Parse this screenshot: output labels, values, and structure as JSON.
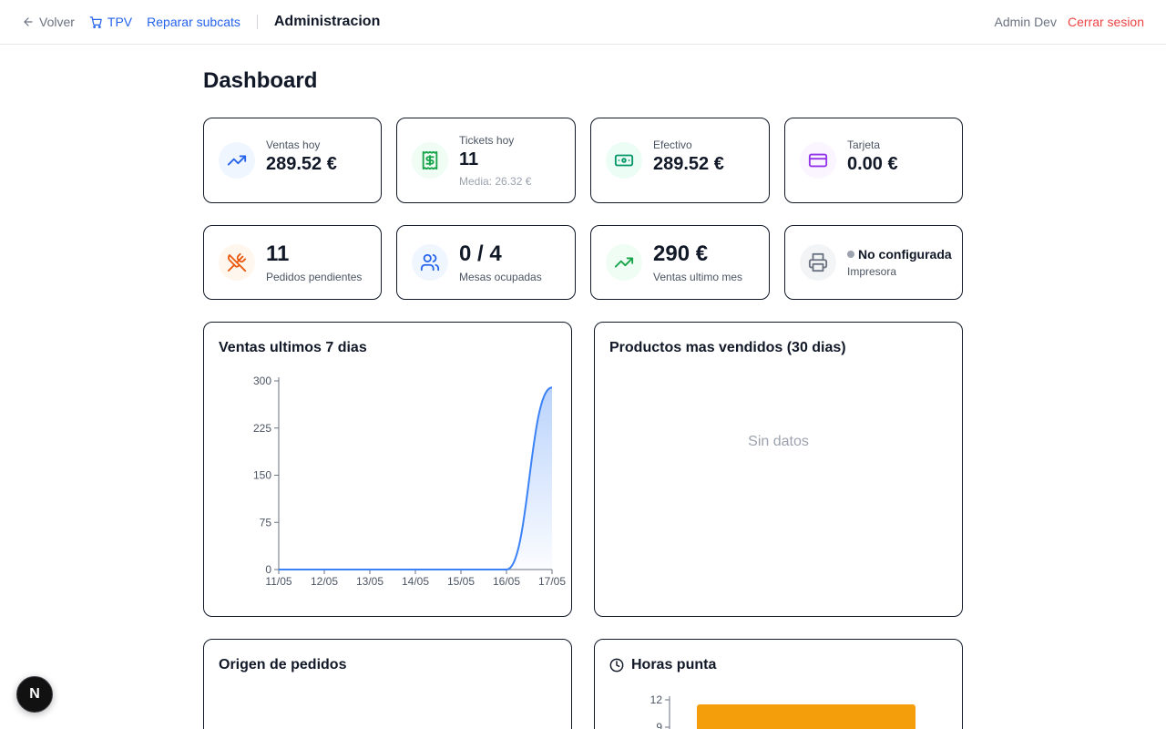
{
  "nav": {
    "back_label": "Volver",
    "tpv_label": "TPV",
    "repair_label": "Reparar subcats",
    "section_title": "Administracion",
    "user_name": "Admin Dev",
    "logout_label": "Cerrar sesion"
  },
  "page": {
    "title": "Dashboard"
  },
  "stats": {
    "ventas_hoy": {
      "label": "Ventas hoy",
      "value": "289.52 €"
    },
    "tickets_hoy": {
      "label": "Tickets hoy",
      "value": "11",
      "sub": "Media: 26.32 €"
    },
    "efectivo": {
      "label": "Efectivo",
      "value": "289.52 €"
    },
    "tarjeta": {
      "label": "Tarjeta",
      "value": "0.00 €"
    },
    "pedidos": {
      "value": "11",
      "label": "Pedidos pendientes"
    },
    "mesas": {
      "value": "0 / 4",
      "label": "Mesas ocupadas"
    },
    "ventas_mes": {
      "value": "290 €",
      "label": "Ventas ultimo mes"
    },
    "impresora": {
      "status": "No configurada",
      "label": "Impresora"
    }
  },
  "colors": {
    "accent_blue": "#2563eb",
    "logout_red": "#ef4444",
    "line_blue": "#3b82f6",
    "bar_orange": "#f59e0b"
  },
  "panels": {
    "ventas_7": {
      "title": "Ventas ultimos 7 dias"
    },
    "productos": {
      "title": "Productos mas vendidos (30 dias)",
      "empty": "Sin datos"
    },
    "origen": {
      "title": "Origen de pedidos"
    },
    "horas": {
      "title": "Horas punta"
    }
  },
  "chart_data": [
    {
      "type": "area",
      "title": "Ventas ultimos 7 dias",
      "categories": [
        "11/05",
        "12/05",
        "13/05",
        "14/05",
        "15/05",
        "16/05",
        "17/05"
      ],
      "values": [
        0,
        0,
        0,
        0,
        0,
        0,
        289.52
      ],
      "ylim": [
        0,
        300
      ],
      "yticks": [
        0,
        75,
        150,
        225,
        300
      ],
      "grid": false
    },
    {
      "type": "bar",
      "title": "Horas punta",
      "yticks": [
        12,
        9
      ],
      "ylim": [
        0,
        12
      ],
      "values": [
        11.5
      ]
    }
  ],
  "fab": {
    "label": "N"
  }
}
